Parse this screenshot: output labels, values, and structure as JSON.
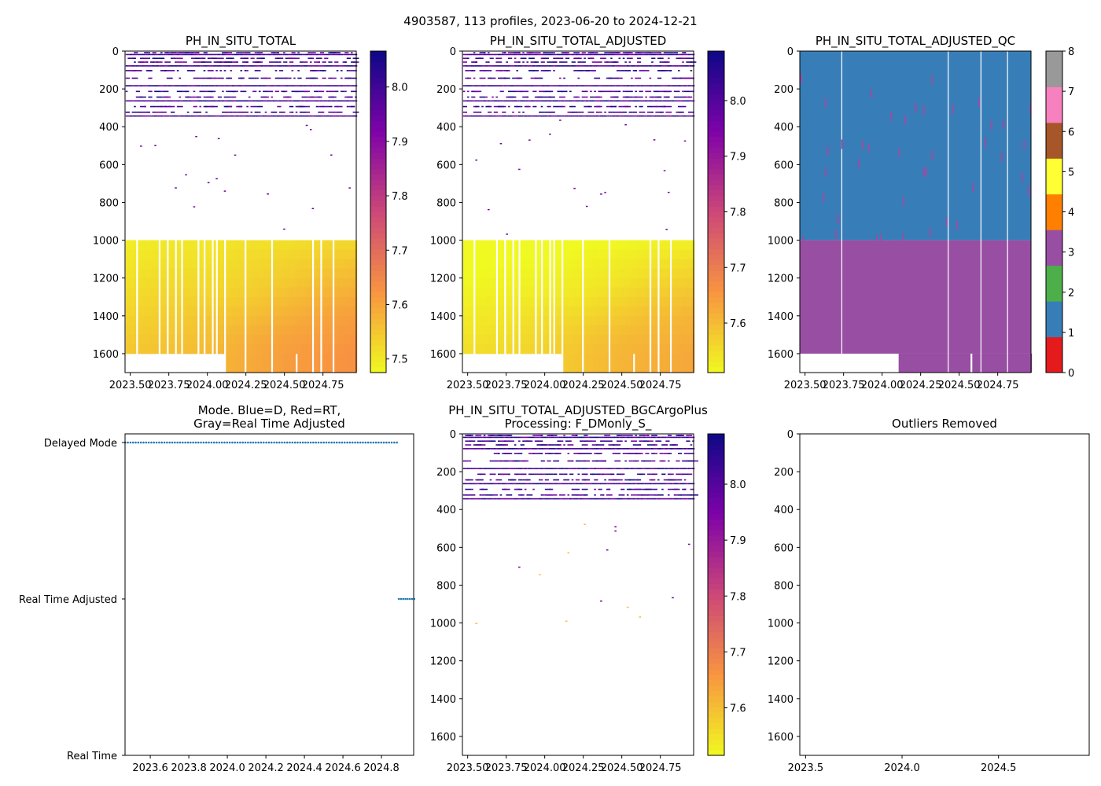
{
  "suptitle": "4903587, 113 profiles, 2023-06-20 to 2024-12-21",
  "chart_data": [
    {
      "type": "heatmap",
      "title": "PH_IN_SITU_TOTAL",
      "ylim": [
        1700,
        0
      ],
      "xlim": [
        2023.466,
        2024.966
      ],
      "yticks": [
        "0",
        "200",
        "400",
        "600",
        "800",
        "1000",
        "1200",
        "1400",
        "1600"
      ],
      "xticks": [
        "2023.50",
        "2023.75",
        "2024.00",
        "2024.25",
        "2024.50",
        "2024.75"
      ],
      "colorbar": {
        "cmap": "plasma_r",
        "range": [
          7.475,
          8.066
        ],
        "ticks": [
          "7.5",
          "7.6",
          "7.7",
          "7.8",
          "7.9",
          "8.0"
        ]
      },
      "n_profiles": 113,
      "deep_ph_grid": {
        "depths": [
          1000,
          1100,
          1200,
          1300,
          1400,
          1500,
          1600,
          1700
        ],
        "times": [
          2023.47,
          2023.75,
          2024.0,
          2024.25,
          2024.5,
          2024.75,
          2024.97
        ],
        "values": [
          [
            7.49,
            7.5,
            7.5,
            7.51,
            7.51,
            7.52,
            7.52
          ],
          [
            7.5,
            7.51,
            7.51,
            7.52,
            7.53,
            7.54,
            7.55
          ],
          [
            7.51,
            7.52,
            7.52,
            7.53,
            7.54,
            7.56,
            7.57
          ],
          [
            7.52,
            7.53,
            7.53,
            7.54,
            7.56,
            7.58,
            7.59
          ],
          [
            7.53,
            7.54,
            7.55,
            7.56,
            7.58,
            7.6,
            7.61
          ],
          [
            7.54,
            7.55,
            7.56,
            7.58,
            7.6,
            7.61,
            7.62
          ],
          [
            7.55,
            7.56,
            7.57,
            7.59,
            7.61,
            7.62,
            7.63
          ],
          [
            7.55,
            7.56,
            7.57,
            7.59,
            7.61,
            7.62,
            7.63
          ]
        ]
      },
      "shallow_ph_range": [
        7.9,
        8.06
      ],
      "data_gap_depths": [
        1000,
        1700
      ]
    },
    {
      "type": "heatmap",
      "title": "PH_IN_SITU_TOTAL_ADJUSTED",
      "ylim": [
        1700,
        0
      ],
      "xlim": [
        2023.466,
        2024.966
      ],
      "yticks": [
        "0",
        "200",
        "400",
        "600",
        "800",
        "1000",
        "1200",
        "1400",
        "1600"
      ],
      "xticks": [
        "2023.50",
        "2023.75",
        "2024.00",
        "2024.25",
        "2024.50",
        "2024.75"
      ],
      "colorbar": {
        "cmap": "plasma_r",
        "range": [
          7.511,
          8.089
        ],
        "ticks": [
          "7.6",
          "7.7",
          "7.8",
          "7.9",
          "8.0"
        ]
      }
    },
    {
      "type": "heatmap",
      "title": "PH_IN_SITU_TOTAL_ADJUSTED_QC",
      "ylim": [
        1700,
        0
      ],
      "xlim": [
        2023.466,
        2024.966
      ],
      "yticks": [
        "0",
        "200",
        "400",
        "600",
        "800",
        "1000",
        "1200",
        "1400",
        "1600"
      ],
      "xticks": [
        "2023.50",
        "2023.75",
        "2024.00",
        "2024.25",
        "2024.50",
        "2024.75"
      ],
      "colorbar": {
        "cmap": "Set1",
        "range": [
          0,
          8
        ],
        "ticks": [
          "0",
          "1",
          "2",
          "3",
          "4",
          "5",
          "6",
          "7",
          "8"
        ],
        "colors": [
          "#e41a1c",
          "#377eb8",
          "#4daf4a",
          "#984ea3",
          "#ff7f00",
          "#ffff33",
          "#a65628",
          "#f781bf",
          "#999999"
        ]
      },
      "qc_by_depth": [
        {
          "from": 0,
          "to": 1000,
          "flag": 1
        },
        {
          "from": 1000,
          "to": 1600,
          "flag": 3
        }
      ]
    },
    {
      "type": "scatter",
      "title": "Mode. Blue=D, Red=RT,\nGray=Real Time Adjusted",
      "title_lines": [
        "Mode. Blue=D, Red=RT,",
        "Gray=Real Time Adjusted"
      ],
      "yticks": [
        "Delayed Mode",
        "Real Time Adjusted",
        "Real Time"
      ],
      "xticks": [
        "2023.6",
        "2023.8",
        "2024.0",
        "2024.2",
        "2024.4",
        "2024.6",
        "2024.8"
      ],
      "xlim": [
        2023.469,
        2024.967
      ],
      "series": [
        {
          "name": "Delayed Mode",
          "color": "#1f77b4",
          "x_range": [
            2023.47,
            2024.88
          ],
          "count": 105
        },
        {
          "name": "Real Time Adjusted",
          "color": "#1f77b4",
          "x_range": [
            2024.89,
            2024.97
          ],
          "count": 8
        }
      ]
    },
    {
      "type": "heatmap",
      "title_lines": [
        "PH_IN_SITU_TOTAL_ADJUSTED_BGCArgoPlus",
        "Processing: F_DMonly_S_"
      ],
      "ylim": [
        1700,
        0
      ],
      "xlim": [
        2023.466,
        2024.966
      ],
      "yticks": [
        "0",
        "200",
        "400",
        "600",
        "800",
        "1000",
        "1200",
        "1400",
        "1600"
      ],
      "xticks": [
        "2023.50",
        "2023.75",
        "2024.00",
        "2024.25",
        "2024.50",
        "2024.75"
      ],
      "colorbar": {
        "cmap": "plasma_r",
        "range": [
          7.515,
          8.09
        ],
        "ticks": [
          "7.6",
          "7.7",
          "7.8",
          "7.9",
          "8.0"
        ]
      }
    },
    {
      "type": "scatter",
      "title": "Outliers Removed",
      "ylim": [
        1700,
        0
      ],
      "xlim": [
        2023.47,
        2024.97
      ],
      "yticks": [
        "0",
        "200",
        "400",
        "600",
        "800",
        "1000",
        "1200",
        "1400",
        "1600"
      ],
      "xticks": [
        "2023.5",
        "2024.0",
        "2024.5"
      ],
      "series": []
    }
  ]
}
